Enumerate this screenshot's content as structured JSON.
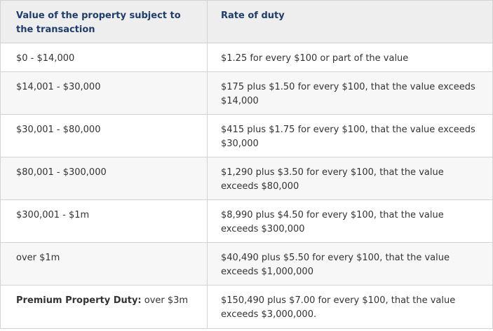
{
  "table": {
    "headers": {
      "value": "Value of the property subject to the transaction",
      "rate": "Rate of duty"
    },
    "rows": [
      {
        "value": "$0 - $14,000",
        "rate": "$1.25 for every $100 or part of the value"
      },
      {
        "value": "$14,001 - $30,000",
        "rate": "$175 plus $1.50 for every $100, that the value exceeds $14,000"
      },
      {
        "value": "$30,001 - $80,000",
        "rate": "$415 plus $1.75 for every $100, that the value exceeds $30,000"
      },
      {
        "value": "$80,001 - $300,000",
        "rate": "$1,290 plus $3.50 for every $100, that the value exceeds $80,000"
      },
      {
        "value": "$300,001 - $1m",
        "rate": "$8,990 plus $4.50 for every $100, that the value exceeds $300,000"
      },
      {
        "value": "over $1m",
        "rate": "$40,490 plus $5.50 for every $100, that the value exceeds $1,000,000"
      },
      {
        "value_bold": "Premium Property Duty:",
        "value": " over $3m",
        "rate": "$150,490 plus $7.00 for every $100, that the value exceeds $3,000,000."
      }
    ]
  }
}
